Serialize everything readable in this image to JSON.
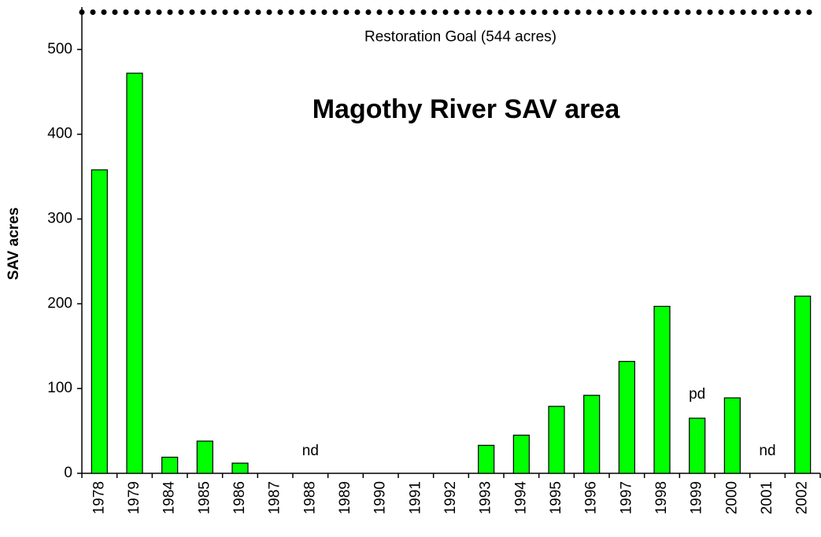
{
  "chart_data": {
    "type": "bar",
    "title": "Magothy River SAV area",
    "y_label": "SAV acres",
    "categories": [
      "1978",
      "1979",
      "1984",
      "1985",
      "1986",
      "1987",
      "1988",
      "1989",
      "1990",
      "1991",
      "1992",
      "1993",
      "1994",
      "1995",
      "1996",
      "1997",
      "1998",
      "1999",
      "2000",
      "2001",
      "2002"
    ],
    "values": [
      358,
      472,
      19,
      38,
      12,
      null,
      null,
      null,
      null,
      null,
      null,
      33,
      45,
      79,
      92,
      132,
      197,
      65,
      89,
      null,
      209
    ],
    "color": "#00ff00",
    "ylim": [
      0,
      550
    ],
    "yticks": [
      0,
      100,
      200,
      300,
      400,
      500
    ],
    "reference_line": {
      "label": "Restoration Goal (544 acres)",
      "value": 544
    },
    "annotations": [
      {
        "text": "nd",
        "x": "1988"
      },
      {
        "text": "pd",
        "x": "1999"
      },
      {
        "text": "nd",
        "x": "2001"
      }
    ]
  }
}
